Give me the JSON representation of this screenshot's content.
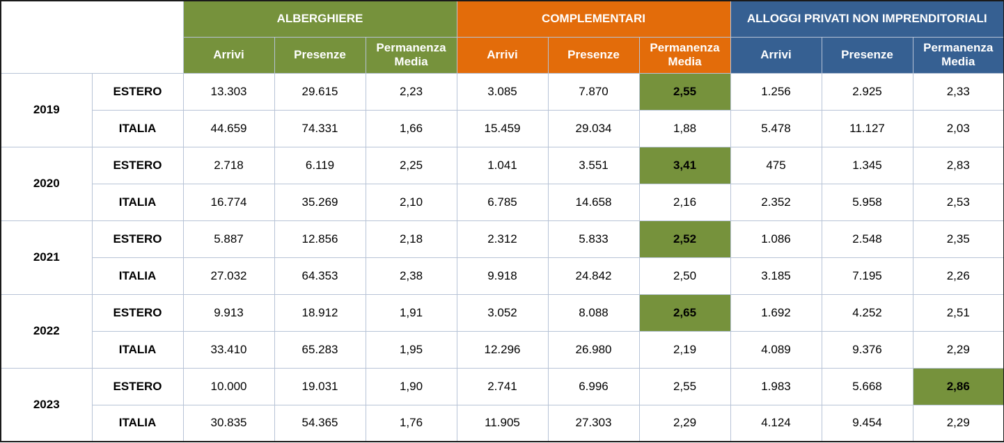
{
  "groups": {
    "alberghiere": "ALBERGHIERE",
    "complementari": "COMPLEMENTARI",
    "alloggi": "ALLOGGI PRIVATI NON IMPRENDITORIALI"
  },
  "subheaders": {
    "arrivi": "Arrivi",
    "presenze": "Presenze",
    "permanenza": "Permanenza Media"
  },
  "colors": {
    "alberghiere": "#76923c",
    "complementari": "#e36c0a",
    "alloggi": "#366092",
    "highlight": "#76923c"
  },
  "rows": [
    {
      "year": "2019",
      "origin": "ESTERO",
      "cells": [
        "13.303",
        "29.615",
        "2,23",
        "3.085",
        "7.870",
        "2,55",
        "1.256",
        "2.925",
        "2,33"
      ],
      "highlight": 5
    },
    {
      "year": "2019",
      "origin": "ITALIA",
      "cells": [
        "44.659",
        "74.331",
        "1,66",
        "15.459",
        "29.034",
        "1,88",
        "5.478",
        "11.127",
        "2,03"
      ],
      "highlight": -1
    },
    {
      "year": "2020",
      "origin": "ESTERO",
      "cells": [
        "2.718",
        "6.119",
        "2,25",
        "1.041",
        "3.551",
        "3,41",
        "475",
        "1.345",
        "2,83"
      ],
      "highlight": 5
    },
    {
      "year": "2020",
      "origin": "ITALIA",
      "cells": [
        "16.774",
        "35.269",
        "2,10",
        "6.785",
        "14.658",
        "2,16",
        "2.352",
        "5.958",
        "2,53"
      ],
      "highlight": -1
    },
    {
      "year": "2021",
      "origin": "ESTERO",
      "cells": [
        "5.887",
        "12.856",
        "2,18",
        "2.312",
        "5.833",
        "2,52",
        "1.086",
        "2.548",
        "2,35"
      ],
      "highlight": 5
    },
    {
      "year": "2021",
      "origin": "ITALIA",
      "cells": [
        "27.032",
        "64.353",
        "2,38",
        "9.918",
        "24.842",
        "2,50",
        "3.185",
        "7.195",
        "2,26"
      ],
      "highlight": -1
    },
    {
      "year": "2022",
      "origin": "ESTERO",
      "cells": [
        "9.913",
        "18.912",
        "1,91",
        "3.052",
        "8.088",
        "2,65",
        "1.692",
        "4.252",
        "2,51"
      ],
      "highlight": 5
    },
    {
      "year": "2022",
      "origin": "ITALIA",
      "cells": [
        "33.410",
        "65.283",
        "1,95",
        "12.296",
        "26.980",
        "2,19",
        "4.089",
        "9.376",
        "2,29"
      ],
      "highlight": -1
    },
    {
      "year": "2023",
      "origin": "ESTERO",
      "cells": [
        "10.000",
        "19.031",
        "1,90",
        "2.741",
        "6.996",
        "2,55",
        "1.983",
        "5.668",
        "2,86"
      ],
      "highlight": 8
    },
    {
      "year": "2023",
      "origin": "ITALIA",
      "cells": [
        "30.835",
        "54.365",
        "1,76",
        "11.905",
        "27.303",
        "2,29",
        "4.124",
        "9.454",
        "2,29"
      ],
      "highlight": -1
    }
  ]
}
